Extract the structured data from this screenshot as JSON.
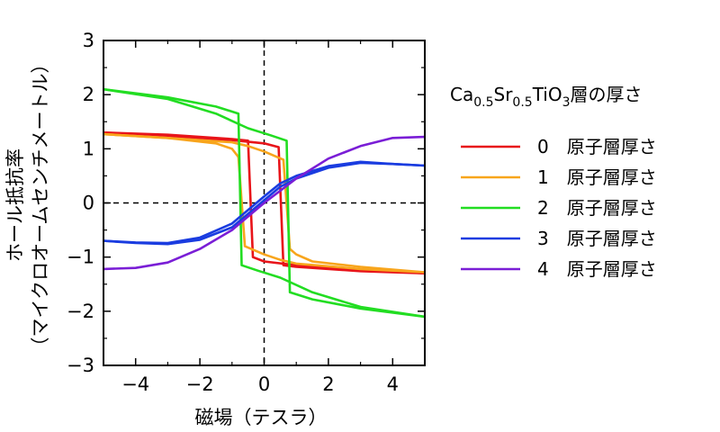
{
  "chart_data": {
    "type": "line",
    "xlabel": "磁場（テスラ）",
    "ylabel_line1": "ホール抵抗率",
    "ylabel_line2": "（マイクロオームセンチメートル）",
    "xlim": [
      -5,
      5
    ],
    "ylim": [
      -3,
      3
    ],
    "xticks": [
      -4,
      -2,
      0,
      2,
      4
    ],
    "yticks": [
      -3,
      -2,
      -1,
      0,
      1,
      2,
      3
    ],
    "xtick_labels": [
      "−4",
      "−2",
      "0",
      "2",
      "4"
    ],
    "ytick_labels": [
      "−3",
      "−2",
      "−1",
      "0",
      "1",
      "2",
      "3"
    ],
    "grid": false,
    "zero_lines": "dashed",
    "legend": {
      "placement": "right",
      "title_main": "Ca",
      "title_sub1": "0.5",
      "title_mid": "Sr",
      "title_sub2": "0.5",
      "title_mid2": "TiO",
      "title_sub3": "3",
      "title_end": "層の厚さ"
    },
    "series": [
      {
        "name": "0　原子層厚さ",
        "color": "#e8141a",
        "branches": [
          [
            [
              -5,
              1.3
            ],
            [
              -3,
              1.26
            ],
            [
              -1,
              1.18
            ],
            [
              -0.5,
              1.15
            ],
            [
              -0.35,
              -1.0
            ],
            [
              0,
              -1.08
            ],
            [
              1,
              -1.15
            ],
            [
              3,
              -1.23
            ],
            [
              5,
              -1.3
            ]
          ],
          [
            [
              5,
              -1.3
            ],
            [
              3,
              -1.26
            ],
            [
              1,
              -1.18
            ],
            [
              0.6,
              -1.15
            ],
            [
              0.45,
              1.03
            ],
            [
              0,
              1.1
            ],
            [
              -1,
              1.16
            ],
            [
              -3,
              1.24
            ],
            [
              -5,
              1.3
            ]
          ]
        ]
      },
      {
        "name": "1　原子層厚さ",
        "color": "#f8a51c",
        "branches": [
          [
            [
              -5,
              1.27
            ],
            [
              -3,
              1.2
            ],
            [
              -1.5,
              1.1
            ],
            [
              -1,
              1.0
            ],
            [
              -0.8,
              0.85
            ],
            [
              -0.6,
              -0.8
            ],
            [
              0,
              -0.95
            ],
            [
              0.5,
              -1.05
            ],
            [
              1,
              -1.12
            ],
            [
              3,
              -1.22
            ],
            [
              5,
              -1.28
            ]
          ],
          [
            [
              5,
              -1.28
            ],
            [
              3,
              -1.18
            ],
            [
              1.5,
              -1.08
            ],
            [
              1,
              -0.95
            ],
            [
              0.8,
              -0.85
            ],
            [
              0.6,
              0.8
            ],
            [
              0,
              0.95
            ],
            [
              -0.5,
              1.05
            ],
            [
              -1,
              1.12
            ],
            [
              -3,
              1.2
            ],
            [
              -5,
              1.27
            ]
          ]
        ]
      },
      {
        "name": "2　原子層厚さ",
        "color": "#22dd22",
        "branches": [
          [
            [
              -5,
              2.1
            ],
            [
              -3,
              1.95
            ],
            [
              -1.5,
              1.78
            ],
            [
              -0.8,
              1.65
            ],
            [
              -0.7,
              -1.15
            ],
            [
              -0.2,
              -1.25
            ],
            [
              0.5,
              -1.38
            ],
            [
              1.5,
              -1.65
            ],
            [
              3,
              -1.92
            ],
            [
              5,
              -2.1
            ]
          ],
          [
            [
              5,
              -2.1
            ],
            [
              3,
              -1.95
            ],
            [
              1.5,
              -1.78
            ],
            [
              0.8,
              -1.65
            ],
            [
              0.7,
              1.15
            ],
            [
              0.2,
              1.25
            ],
            [
              -0.5,
              1.38
            ],
            [
              -1.5,
              1.65
            ],
            [
              -3,
              1.92
            ],
            [
              -5,
              2.1
            ]
          ]
        ]
      },
      {
        "name": "3　原子層厚さ",
        "color": "#1a3ce0",
        "branches": [
          [
            [
              -5,
              -0.7
            ],
            [
              -4,
              -0.74
            ],
            [
              -3,
              -0.76
            ],
            [
              -2,
              -0.68
            ],
            [
              -1,
              -0.45
            ],
            [
              0,
              0.05
            ],
            [
              0.5,
              0.3
            ],
            [
              1,
              0.45
            ],
            [
              2,
              0.65
            ],
            [
              3,
              0.74
            ],
            [
              4,
              0.72
            ],
            [
              5,
              0.69
            ]
          ],
          [
            [
              -5,
              -0.7
            ],
            [
              -4,
              -0.73
            ],
            [
              -3,
              -0.74
            ],
            [
              -2,
              -0.64
            ],
            [
              -1,
              -0.38
            ],
            [
              0,
              0.12
            ],
            [
              0.5,
              0.36
            ],
            [
              1,
              0.5
            ],
            [
              2,
              0.68
            ],
            [
              3,
              0.76
            ],
            [
              4,
              0.72
            ],
            [
              5,
              0.69
            ]
          ]
        ]
      },
      {
        "name": "4　原子層厚さ",
        "color": "#7a1ed6",
        "branches": [
          [
            [
              -5,
              -1.22
            ],
            [
              -4,
              -1.2
            ],
            [
              -3,
              -1.1
            ],
            [
              -2,
              -0.85
            ],
            [
              -1,
              -0.5
            ],
            [
              0,
              0.0
            ],
            [
              1,
              0.45
            ],
            [
              2,
              0.82
            ],
            [
              3,
              1.05
            ],
            [
              4,
              1.2
            ],
            [
              5,
              1.22
            ]
          ]
        ]
      }
    ]
  }
}
